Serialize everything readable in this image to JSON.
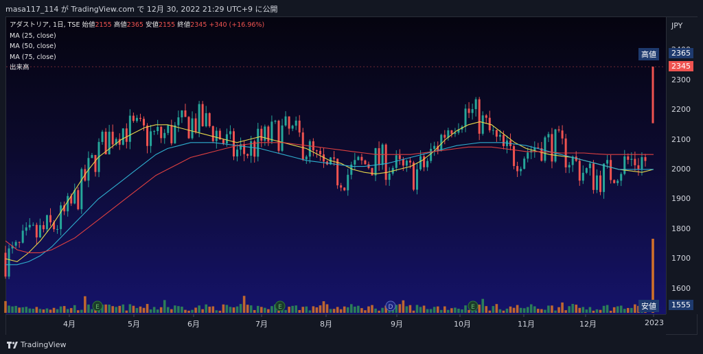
{
  "header": {
    "caption": "masa117_114 が TradingView.com で 12月 30, 2022 21:29 UTC+9 に公開"
  },
  "legend": {
    "symbol": "アダストリア, 1日, TSE",
    "open_label": "始値",
    "open": "2155",
    "high_label": "高値",
    "high": "2365",
    "low_label": "安値",
    "low": "2155",
    "close_label": "終値",
    "close": "2345",
    "change": "+340 (+16.96%)",
    "ma25": "MA (25, close)",
    "ma50": "MA (50, close)",
    "ma75": "MA (75, close)",
    "volume": "出来高"
  },
  "price_axis": {
    "currency": "JPY",
    "high_label": "高値",
    "high_value": "2365",
    "last_value": "2345",
    "low_label": "安値",
    "low_value": "1555"
  },
  "footer": {
    "brand": "TradingView",
    "logo": "tradingview-logo-icon"
  },
  "colors": {
    "up": "#26a69a",
    "down": "#ef5350",
    "ma25": "#e8d84a",
    "ma50": "#2fb0d0",
    "ma75": "#e04040",
    "vol_up": "#2e8b57",
    "vol_down": "#d0702a"
  },
  "events": [
    {
      "label": "E",
      "after_month": "4月"
    },
    {
      "label": "E",
      "after_month": "7月"
    },
    {
      "label": "D",
      "after_month": "9月"
    },
    {
      "label": "E",
      "after_month": "10月"
    }
  ],
  "chart_data": {
    "type": "candlestick",
    "x_ticks": [
      "4月",
      "5月",
      "6月",
      "7月",
      "8月",
      "9月",
      "10月",
      "11月",
      "12月",
      "2023"
    ],
    "y_ticks": [
      1600,
      1700,
      1800,
      1900,
      2000,
      2100,
      2200,
      2300,
      2400
    ],
    "ylim": [
      1555,
      2420
    ],
    "series": [
      {
        "name": "MA (25, close)",
        "close_path": [
          1700,
          1690,
          1720,
          1760,
          1810,
          1870,
          1930,
          1990,
          2040,
          2070,
          2100,
          2120,
          2140,
          2150,
          2150,
          2140,
          2130,
          2120,
          2110,
          2100,
          2090,
          2100,
          2110,
          2100,
          2090,
          2080,
          2070,
          2050,
          2030,
          2020,
          2000,
          1990,
          1985,
          1990,
          2000,
          2010,
          2030,
          2060,
          2100,
          2130,
          2150,
          2160,
          2150,
          2120,
          2090,
          2070,
          2060,
          2050,
          2045,
          2040,
          2030,
          2020,
          2010,
          2000,
          1995,
          1990,
          2000
        ]
      },
      {
        "name": "MA (50, close)",
        "close_path": [
          1680,
          1680,
          1690,
          1710,
          1740,
          1780,
          1820,
          1860,
          1900,
          1930,
          1960,
          1990,
          2020,
          2050,
          2070,
          2080,
          2090,
          2090,
          2090,
          2085,
          2080,
          2075,
          2070,
          2060,
          2050,
          2040,
          2030,
          2025,
          2020,
          2015,
          2010,
          2010,
          2015,
          2020,
          2030,
          2040,
          2050,
          2060,
          2070,
          2080,
          2085,
          2090,
          2090,
          2090,
          2085,
          2080,
          2070,
          2060,
          2050,
          2040,
          2030,
          2020,
          2010,
          2000,
          2000,
          2000,
          2000
        ]
      },
      {
        "name": "MA (75, close)",
        "close_path": [
          1760,
          1730,
          1720,
          1720,
          1730,
          1750,
          1770,
          1800,
          1830,
          1860,
          1890,
          1920,
          1950,
          1980,
          2000,
          2020,
          2040,
          2050,
          2060,
          2070,
          2080,
          2085,
          2090,
          2090,
          2090,
          2085,
          2080,
          2075,
          2070,
          2065,
          2060,
          2055,
          2050,
          2050,
          2050,
          2050,
          2055,
          2060,
          2065,
          2070,
          2075,
          2075,
          2075,
          2070,
          2065,
          2060,
          2060,
          2058,
          2055,
          2055,
          2055,
          2052,
          2050,
          2050,
          2050,
          2050,
          2050
        ]
      }
    ],
    "last_candle": {
      "open": 2155,
      "high": 2365,
      "low": 2155,
      "close": 2345
    }
  }
}
